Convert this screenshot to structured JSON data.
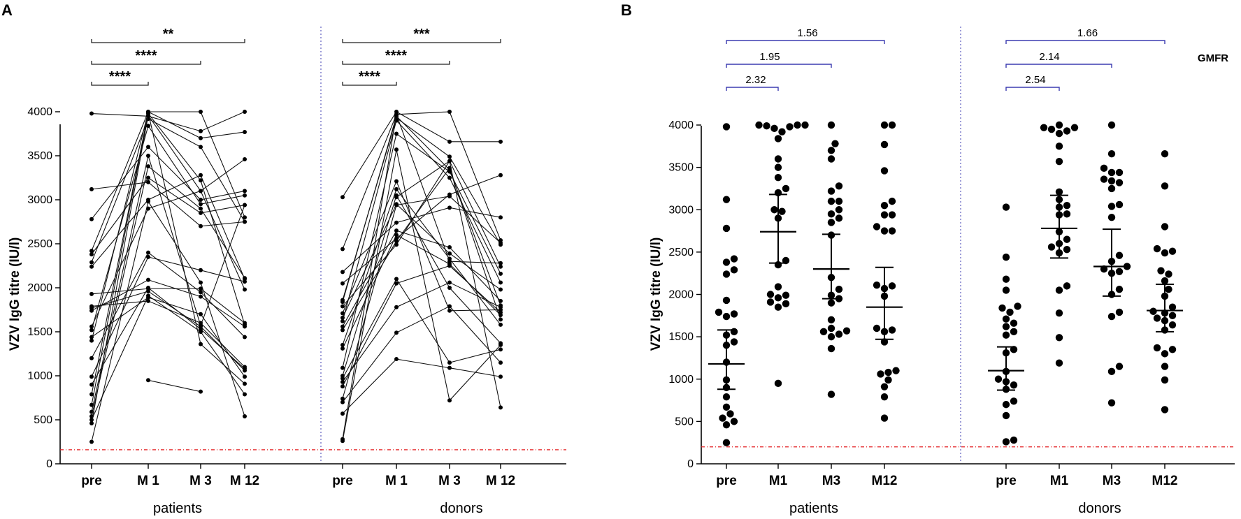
{
  "chart_data": [
    {
      "panel": "A",
      "type": "line",
      "ylabel": "VZV IgG titre (IU/l)",
      "ylim": [
        0,
        4000
      ],
      "yticks": [
        0,
        500,
        1000,
        1500,
        2000,
        2500,
        3000,
        3500,
        4000
      ],
      "threshold": 160,
      "threshold_color": "#e31a1c",
      "divider_color": "#3b3bb0",
      "groups": [
        {
          "name": "patients",
          "categories": [
            "pre",
            "M 1",
            "M 3",
            "M 12"
          ],
          "comparisons": [
            {
              "from": "pre",
              "to": "M 1",
              "label": "****"
            },
            {
              "from": "pre",
              "to": "M 3",
              "label": "****"
            },
            {
              "from": "pre",
              "to": "M 12",
              "label": "**"
            }
          ],
          "subjects": [
            [
              3980,
              3950,
              3780,
              4000
            ],
            [
              3120,
              3200,
              2700,
              2750
            ],
            [
              2780,
              3600,
              3000,
              3100
            ],
            [
              2420,
              4000,
              4000,
              2800
            ],
            [
              2380,
              3250,
              2850,
              2940
            ],
            [
              2290,
              3920,
              3600,
              2750
            ],
            [
              2240,
              3000,
              3280,
              2100
            ],
            [
              1930,
              1990,
              1990,
              1600
            ],
            [
              1790,
              1850,
              1600,
              1100
            ],
            [
              1770,
              1960,
              1560,
              1060
            ],
            [
              1740,
              2090,
              1900,
              1560
            ],
            [
              1560,
              2900,
              3100,
              3460
            ],
            [
              1520,
              3840,
              2950,
              3050
            ],
            [
              1440,
              1890,
              1700,
              990
            ],
            [
              1400,
              4000,
              3700,
              3770
            ],
            [
              1200,
              2400,
              1950,
              1440
            ],
            [
              990,
              2350,
              2200,
              2070
            ],
            [
              900,
              2000,
              1530,
              1080
            ],
            [
              790,
              3990,
              1360,
              910
            ],
            [
              670,
              3980,
              3220,
              1580
            ],
            [
              590,
              3500,
              1570,
              2940
            ],
            [
              540,
              3380,
              2900,
              2110
            ],
            [
              500,
              1910,
              1500,
              790
            ],
            [
              460,
              3960,
              3100,
              1980
            ],
            [
              250,
              2980,
              2060,
              540
            ],
            [
              -1,
              950,
              820,
              -1
            ]
          ]
        },
        {
          "name": "donors",
          "categories": [
            "pre",
            "M 1",
            "M 3",
            "M 12"
          ],
          "comparisons": [
            {
              "from": "pre",
              "to": "M 1",
              "label": "****"
            },
            {
              "from": "pre",
              "to": "M 3",
              "label": "****"
            },
            {
              "from": "pre",
              "to": "M 12",
              "label": "***"
            }
          ],
          "subjects": [
            [
              3030,
              4000,
              3660,
              3660
            ],
            [
              2440,
              3970,
              4000,
              2540
            ],
            [
              2050,
              2560,
              3060,
              3280
            ],
            [
              1860,
              3930,
              3490,
              2490
            ],
            [
              1840,
              3950,
              3340,
              1800
            ],
            [
              1790,
              2490,
              3440,
              2240
            ],
            [
              1710,
              3210,
              1740,
              1750
            ],
            [
              1660,
              2950,
              2390,
              1980
            ],
            [
              1620,
              3900,
              3250,
              2060
            ],
            [
              1520,
              2530,
              3360,
              1640
            ],
            [
              1350,
              3120,
              2330,
              1580
            ],
            [
              1310,
              2600,
              2270,
              1690
            ],
            [
              1090,
              3750,
              3320,
              2160
            ],
            [
              1000,
              3050,
              2000,
              1370
            ],
            [
              970,
              2100,
              1150,
              1300
            ],
            [
              930,
              1780,
              2060,
              1780
            ],
            [
              880,
              2050,
              2250,
              1720
            ],
            [
              740,
              2940,
              3040,
              2510
            ],
            [
              700,
              1490,
              1790,
              1150
            ],
            [
              570,
              1190,
              1090,
              990
            ],
            [
              280,
              3970,
              2300,
              2280
            ],
            [
              260,
              3570,
              720,
              1350
            ],
            [
              2180,
              2740,
              2910,
              2800
            ],
            [
              1560,
              2650,
              2460,
              1850
            ],
            [
              -1,
              3030,
              3440,
              640
            ]
          ]
        }
      ]
    },
    {
      "panel": "B",
      "type": "scatter",
      "ylabel": "VZV IgG titre (IU/l)",
      "ylim": [
        0,
        4000
      ],
      "yticks": [
        0,
        500,
        1000,
        1500,
        2000,
        2500,
        3000,
        3500,
        4000
      ],
      "threshold": 200,
      "gmfr_title": "GMFR",
      "bracket_color": "#3b3bb0",
      "groups": [
        {
          "name": "patients",
          "categories": [
            "pre",
            "M1",
            "M3",
            "M12"
          ],
          "gmfr": [
            {
              "from": "pre",
              "to": "M1",
              "label": "2.32"
            },
            {
              "from": "pre",
              "to": "M3",
              "label": "1.95"
            },
            {
              "from": "pre",
              "to": "M12",
              "label": "1.56"
            }
          ],
          "summary": [
            {
              "mean": 1180,
              "lower": 880,
              "upper": 1580
            },
            {
              "mean": 2740,
              "lower": 2370,
              "upper": 3180
            },
            {
              "mean": 2300,
              "lower": 1950,
              "upper": 2710
            },
            {
              "mean": 1850,
              "lower": 1470,
              "upper": 2320
            }
          ],
          "points": [
            [
              3980,
              3120,
              2780,
              2420,
              2380,
              2290,
              2240,
              1930,
              1790,
              1770,
              1740,
              1560,
              1520,
              1440,
              1400,
              1200,
              990,
              900,
              790,
              670,
              590,
              540,
              500,
              460,
              250
            ],
            [
              4000,
              4000,
              4000,
              3990,
              3980,
              3960,
              3920,
              3840,
              3600,
              3500,
              3380,
              3250,
              3200,
              3000,
              2980,
              2900,
              2400,
              2350,
              2090,
              2000,
              1990,
              1960,
              1910,
              1890,
              1850,
              950
            ],
            [
              4000,
              3780,
              3700,
              3600,
              3280,
              3220,
              3100,
              3100,
              3000,
              2950,
              2900,
              2850,
              2700,
              2200,
              2060,
              1990,
              1950,
              1900,
              1700,
              1600,
              1570,
              1560,
              1530,
              1500,
              1360,
              820
            ],
            [
              4000,
              4000,
              3770,
              3460,
              3100,
              3050,
              2940,
              2940,
              2800,
              2750,
              2750,
              2110,
              2100,
              2070,
              1980,
              1600,
              1580,
              1560,
              1440,
              1100,
              1080,
              1060,
              990,
              910,
              790,
              540
            ]
          ]
        },
        {
          "name": "donors",
          "categories": [
            "pre",
            "M1",
            "M3",
            "M12"
          ],
          "gmfr": [
            {
              "from": "pre",
              "to": "M1",
              "label": "2.54"
            },
            {
              "from": "pre",
              "to": "M3",
              "label": "2.14"
            },
            {
              "from": "pre",
              "to": "M12",
              "label": "1.66"
            }
          ],
          "summary": [
            {
              "mean": 1100,
              "lower": 870,
              "upper": 1380
            },
            {
              "mean": 2780,
              "lower": 2430,
              "upper": 3170
            },
            {
              "mean": 2330,
              "lower": 1980,
              "upper": 2770
            },
            {
              "mean": 1810,
              "lower": 1560,
              "upper": 2120
            }
          ],
          "points": [
            [
              3030,
              2440,
              2180,
              2050,
              1860,
              1840,
              1790,
              1710,
              1660,
              1620,
              1560,
              1520,
              1350,
              1310,
              1090,
              1000,
              970,
              930,
              880,
              740,
              700,
              570,
              280,
              260
            ],
            [
              4000,
              3970,
              3970,
              3950,
              3930,
              3900,
              3750,
              3570,
              3210,
              3120,
              3050,
              3030,
              2950,
              2940,
              2740,
              2650,
              2600,
              2560,
              2530,
              2490,
              2100,
              2050,
              1780,
              1490,
              1190
            ],
            [
              4000,
              3660,
              3490,
              3440,
              3440,
              3360,
              3340,
              3320,
              3250,
              3060,
              3040,
              2910,
              2460,
              2390,
              2330,
              2300,
              2270,
              2250,
              2060,
              2000,
              1790,
              1740,
              1150,
              1090,
              720
            ],
            [
              3660,
              3280,
              2800,
              2540,
              2510,
              2490,
              2280,
              2240,
              2160,
              2060,
              1980,
              1850,
              1800,
              1780,
              1750,
              1720,
              1690,
              1640,
              1580,
              1370,
              1350,
              1300,
              1150,
              990,
              640
            ]
          ]
        }
      ]
    }
  ]
}
